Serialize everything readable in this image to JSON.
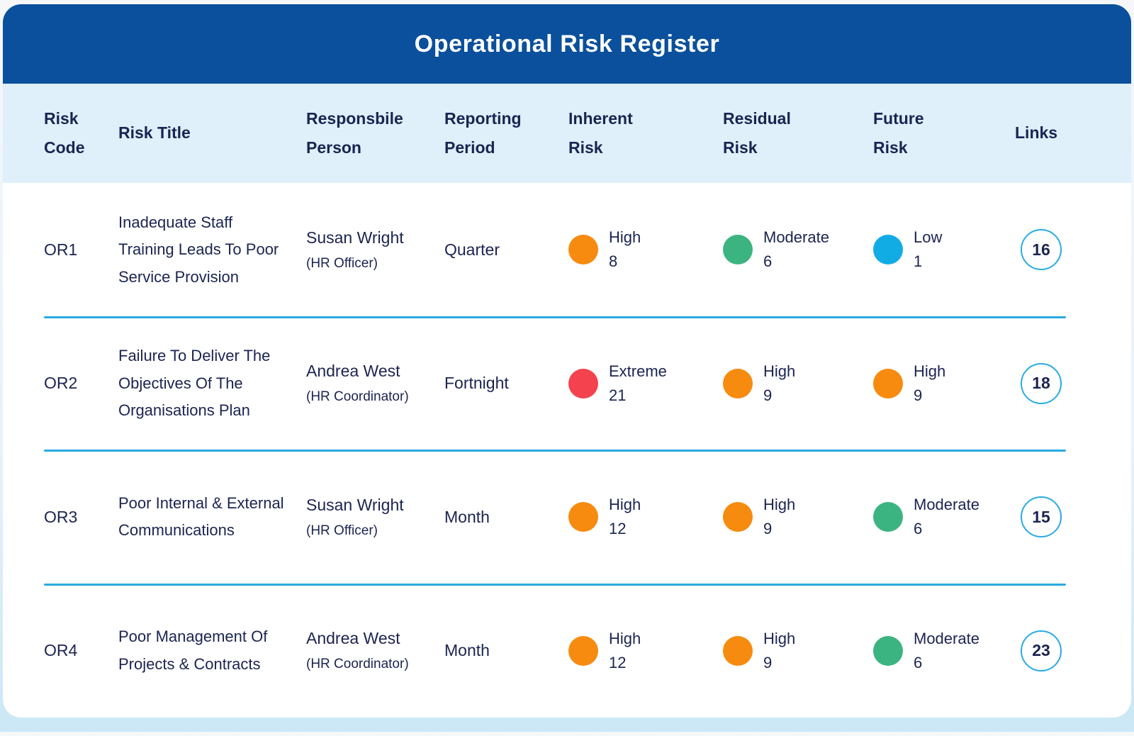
{
  "header": {
    "title": "Operational Risk Register"
  },
  "columns": {
    "code": "Risk Code",
    "title": "Risk Title",
    "person": "Responsbile Person",
    "period": "Reporting Period",
    "inherent": "Inherent Risk",
    "residual": "Residual Risk",
    "future": "Future Risk",
    "links": "Links"
  },
  "colors": {
    "banner_blue": "#0A509C",
    "header_row_blue": "#DFF0FB",
    "text_navy": "#1B2451",
    "divider_cyan": "#29ABE2",
    "extreme": "#F4434E",
    "high": "#F68B0F",
    "moderate": "#3CB481",
    "low": "#12ACE5"
  },
  "rows": [
    {
      "code": "OR1",
      "title": "Inadequate Staff Training Leads To Poor Service Provision",
      "person": "Susan Wright",
      "role": "(HR Officer)",
      "period": "Quarter",
      "inherent": {
        "level": "High",
        "score": 8,
        "color": "#F68B0F"
      },
      "residual": {
        "level": "Moderate",
        "score": 6,
        "color": "#3CB481"
      },
      "future": {
        "level": "Low",
        "score": 1,
        "color": "#12ACE5"
      },
      "links": 16
    },
    {
      "code": "OR2",
      "title": "Failure To Deliver The Objectives Of The Organisations Plan",
      "person": "Andrea West",
      "role": "(HR Coordinator)",
      "period": "Fortnight",
      "inherent": {
        "level": "Extreme",
        "score": 21,
        "color": "#F4434E"
      },
      "residual": {
        "level": "High",
        "score": 9,
        "color": "#F68B0F"
      },
      "future": {
        "level": "High",
        "score": 9,
        "color": "#F68B0F"
      },
      "links": 18
    },
    {
      "code": "OR3",
      "title": "Poor Internal & External Communications",
      "person": "Susan Wright",
      "role": "(HR Officer)",
      "period": "Month",
      "inherent": {
        "level": "High",
        "score": 12,
        "color": "#F68B0F"
      },
      "residual": {
        "level": "High",
        "score": 9,
        "color": "#F68B0F"
      },
      "future": {
        "level": "Moderate",
        "score": 6,
        "color": "#3CB481"
      },
      "links": 15
    },
    {
      "code": "OR4",
      "title": "Poor Management Of Projects & Contracts",
      "person": "Andrea West",
      "role": "(HR Coordinator)",
      "period": "Month",
      "inherent": {
        "level": "High",
        "score": 12,
        "color": "#F68B0F"
      },
      "residual": {
        "level": "High",
        "score": 9,
        "color": "#F68B0F"
      },
      "future": {
        "level": "Moderate",
        "score": 6,
        "color": "#3CB481"
      },
      "links": 23
    }
  ]
}
